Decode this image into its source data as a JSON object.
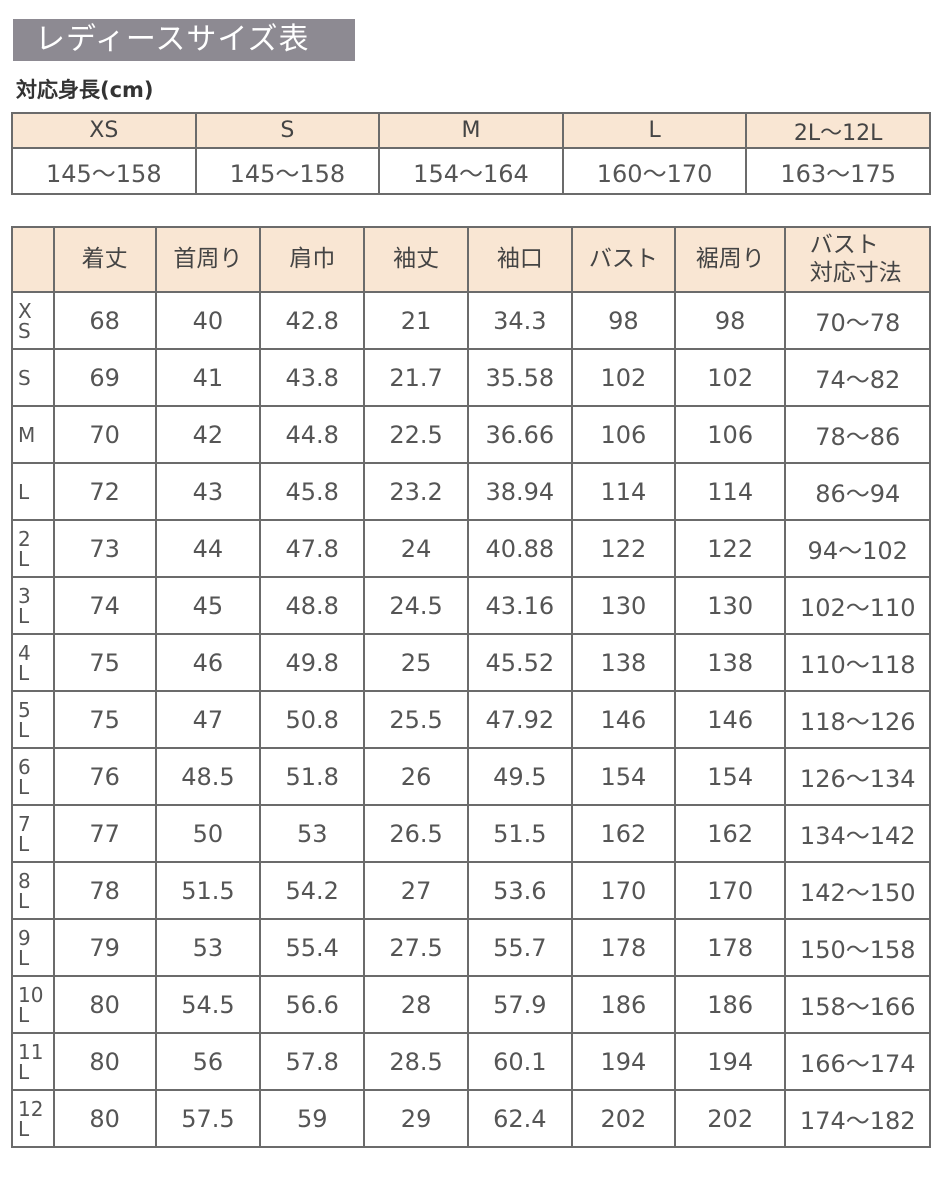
{
  "title": "レディースサイズ表",
  "height_label": "対応身長(cm)",
  "height_table": {
    "headers": [
      "XS",
      "S",
      "M",
      "L",
      "2L〜12L"
    ],
    "values": [
      "145〜158",
      "145〜158",
      "154〜164",
      "160〜170",
      "163〜175"
    ]
  },
  "size_table": {
    "headers": [
      "",
      "着丈",
      "首周り",
      "肩巾",
      "袖丈",
      "袖口",
      "バスト",
      "裾周り",
      "バスト 対応寸法"
    ],
    "rows": [
      [
        "XS",
        "68",
        "40",
        "42.8",
        "21",
        "34.3",
        "98",
        "98",
        "70〜78"
      ],
      [
        "S",
        "69",
        "41",
        "43.8",
        "21.7",
        "35.58",
        "102",
        "102",
        "74〜82"
      ],
      [
        "M",
        "70",
        "42",
        "44.8",
        "22.5",
        "36.66",
        "106",
        "106",
        "78〜86"
      ],
      [
        "L",
        "72",
        "43",
        "45.8",
        "23.2",
        "38.94",
        "114",
        "114",
        "86〜94"
      ],
      [
        "2L",
        "73",
        "44",
        "47.8",
        "24",
        "40.88",
        "122",
        "122",
        "94〜102"
      ],
      [
        "3L",
        "74",
        "45",
        "48.8",
        "24.5",
        "43.16",
        "130",
        "130",
        "102〜110"
      ],
      [
        "4L",
        "75",
        "46",
        "49.8",
        "25",
        "45.52",
        "138",
        "138",
        "110〜118"
      ],
      [
        "5L",
        "75",
        "47",
        "50.8",
        "25.5",
        "47.92",
        "146",
        "146",
        "118〜126"
      ],
      [
        "6L",
        "76",
        "48.5",
        "51.8",
        "26",
        "49.5",
        "154",
        "154",
        "126〜134"
      ],
      [
        "7L",
        "77",
        "50",
        "53",
        "26.5",
        "51.5",
        "162",
        "162",
        "134〜142"
      ],
      [
        "8L",
        "78",
        "51.5",
        "54.2",
        "27",
        "53.6",
        "170",
        "170",
        "142〜150"
      ],
      [
        "9L",
        "79",
        "53",
        "55.4",
        "27.5",
        "55.7",
        "178",
        "178",
        "150〜158"
      ],
      [
        "10L",
        "80",
        "54.5",
        "56.6",
        "28",
        "57.9",
        "186",
        "186",
        "158〜166"
      ],
      [
        "11L",
        "80",
        "56",
        "57.8",
        "28.5",
        "60.1",
        "194",
        "194",
        "166〜174"
      ],
      [
        "12L",
        "80",
        "57.5",
        "59",
        "29",
        "62.4",
        "202",
        "202",
        "174〜182"
      ]
    ]
  },
  "colors": {
    "title_bg": "#8d8a92",
    "header_bg": "#f9e6d3",
    "border": "#6b6b6b"
  }
}
